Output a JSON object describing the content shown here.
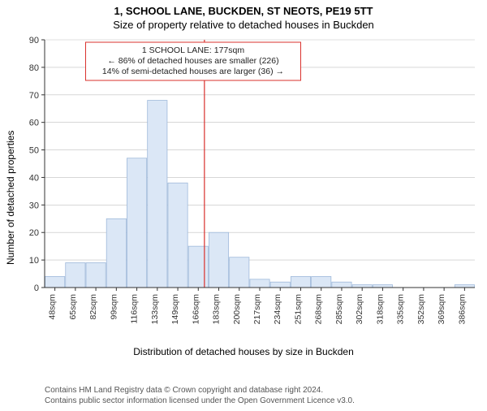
{
  "titles": {
    "main": "1, SCHOOL LANE, BUCKDEN, ST NEOTS, PE19 5TT",
    "sub": "Size of property relative to detached houses in Buckden"
  },
  "axis": {
    "ylabel": "Number of detached properties",
    "xlabel": "Distribution of detached houses by size in Buckden"
  },
  "chart": {
    "yticks": [
      0,
      10,
      20,
      30,
      40,
      50,
      60,
      70,
      80,
      90
    ],
    "ylim": [
      0,
      90
    ],
    "xticks": [
      "48sqm",
      "65sqm",
      "82sqm",
      "99sqm",
      "116sqm",
      "133sqm",
      "149sqm",
      "166sqm",
      "183sqm",
      "200sqm",
      "217sqm",
      "234sqm",
      "251sqm",
      "268sqm",
      "285sqm",
      "302sqm",
      "318sqm",
      "335sqm",
      "352sqm",
      "369sqm",
      "386sqm"
    ],
    "bars": [
      4,
      9,
      9,
      25,
      47,
      68,
      38,
      15,
      20,
      11,
      3,
      2,
      4,
      4,
      2,
      1,
      1,
      0,
      0,
      0,
      1
    ],
    "bar_fill": "#dbe7f6",
    "bar_stroke": "#9fb9da",
    "grid_color": "#bfbfbf",
    "axis_color": "#333333",
    "background": "#ffffff",
    "refline_x_index": 7.8,
    "refline_color": "#d9302c",
    "annotation_box": {
      "border_color": "#d9302c",
      "lines": [
        "1 SCHOOL LANE: 177sqm",
        "← 86% of detached houses are smaller (226)",
        "14% of semi-detached houses are larger (36) →"
      ]
    }
  },
  "footer": {
    "line1": "Contains HM Land Registry data © Crown copyright and database right 2024.",
    "line2": "Contains public sector information licensed under the Open Government Licence v3.0."
  }
}
